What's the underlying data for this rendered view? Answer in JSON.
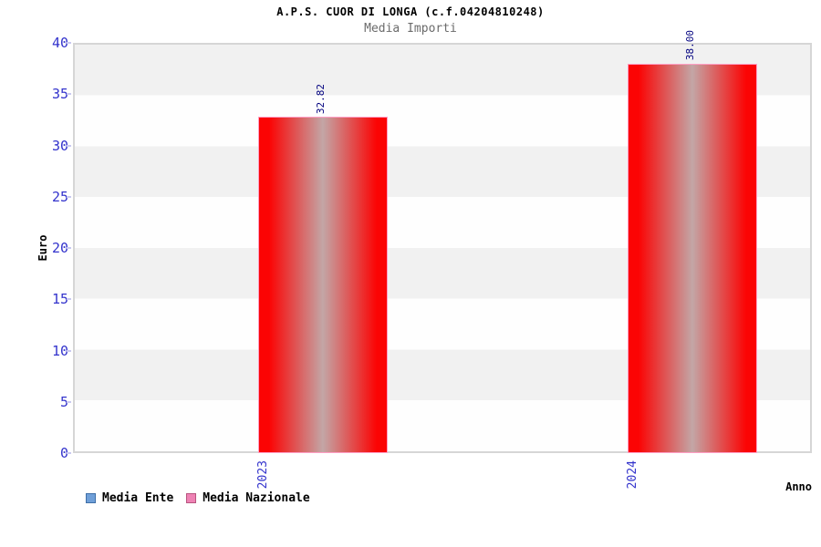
{
  "header": {
    "title": "A.P.S. CUOR DI LONGA (c.f.04204810248)",
    "subtitle": "Media Importi"
  },
  "chart_data": {
    "type": "bar",
    "title": "A.P.S. CUOR DI LONGA (c.f.04204810248)",
    "subtitle": "Media Importi",
    "xlabel": "Anno",
    "ylabel": "Euro",
    "ylim": [
      0,
      40
    ],
    "yticks": [
      0,
      5,
      10,
      15,
      20,
      25,
      30,
      35,
      40
    ],
    "categories": [
      "2023",
      "2024"
    ],
    "series": [
      {
        "name": "Media Ente",
        "values": [
          null,
          null
        ],
        "value_labels": [
          "",
          ""
        ],
        "legend_color": "#6f9fd8",
        "legend_border": "#3f6fa8",
        "bar_edge": "#2222ee",
        "bar_mid": "#a8b4cc",
        "bar_border": "#88aadd"
      },
      {
        "name": "Media Nazionale",
        "values": [
          32.82,
          38.0
        ],
        "value_labels": [
          "32.82",
          "38.00"
        ],
        "legend_color": "#ee82b4",
        "legend_border": "#b8547f",
        "bar_edge": "#fb0404",
        "bar_mid": "#c3a6a6",
        "bar_border": "#ff9ec4"
      }
    ],
    "grid": "horizontal-alternating-bands",
    "band_colors": [
      "#f1f1f1",
      "#fefefe"
    ],
    "legend_position": "bottom",
    "axis_tick_color": "#3333cc",
    "value_label_color": "#00007f"
  }
}
